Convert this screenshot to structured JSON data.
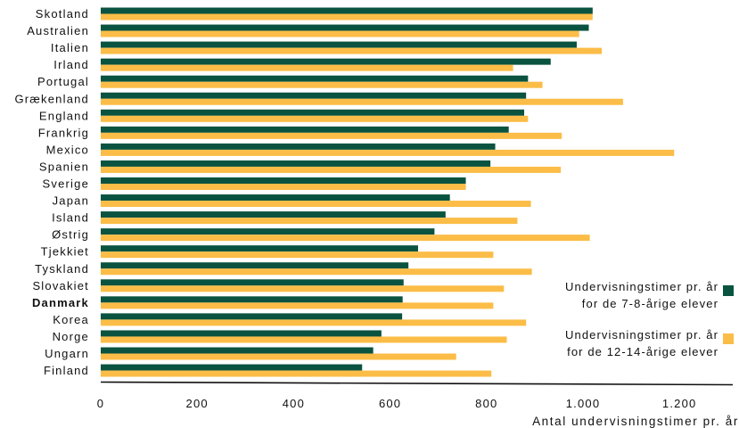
{
  "chart_data": {
    "type": "bar",
    "orientation": "horizontal",
    "categories": [
      "Skotland",
      "Australien",
      "Italien",
      "Irland",
      "Portugal",
      "Grækenland",
      "England",
      "Frankrig",
      "Mexico",
      "Spanien",
      "Sverige",
      "Japan",
      "Island",
      "Østrig",
      "Tjekkiet",
      "Tyskland",
      "Slovakiet",
      "Danmark",
      "Korea",
      "Norge",
      "Ungarn",
      "Finland"
    ],
    "highlight_category": "Danmark",
    "series": [
      {
        "name": "Undervisningstimer pr. år for de 7-8-årige elever",
        "legend_lines": [
          "Undervisningstimer pr. år",
          "for de 7-8-årige elever"
        ],
        "color": "#0a5340",
        "values": [
          1020,
          1012,
          987,
          933,
          886,
          882,
          878,
          846,
          818,
          808,
          757,
          724,
          715,
          692,
          658,
          638,
          628,
          626,
          625,
          582,
          565,
          542
        ]
      },
      {
        "name": "Undervisningstimer pr. år for de 12-14-årige elever",
        "legend_lines": [
          "Undervisningstimer pr. år",
          "for de 12-14-årige elever"
        ],
        "color": "#fbbd47",
        "values": [
          1020,
          992,
          1039,
          855,
          916,
          1083,
          886,
          956,
          1189,
          954,
          757,
          892,
          864,
          1014,
          814,
          894,
          836,
          814,
          882,
          842,
          737,
          810
        ]
      }
    ],
    "x_ticks": [
      "0",
      "200",
      "400",
      "600",
      "800",
      "1.000",
      "1.200"
    ],
    "x_tick_values": [
      0,
      200,
      400,
      600,
      800,
      1000,
      1200
    ],
    "xlabel": "Antal undervisningstimer pr. år",
    "ylabel": "",
    "xlim": [
      0,
      1300
    ],
    "grid": false,
    "legend_position": "right"
  }
}
